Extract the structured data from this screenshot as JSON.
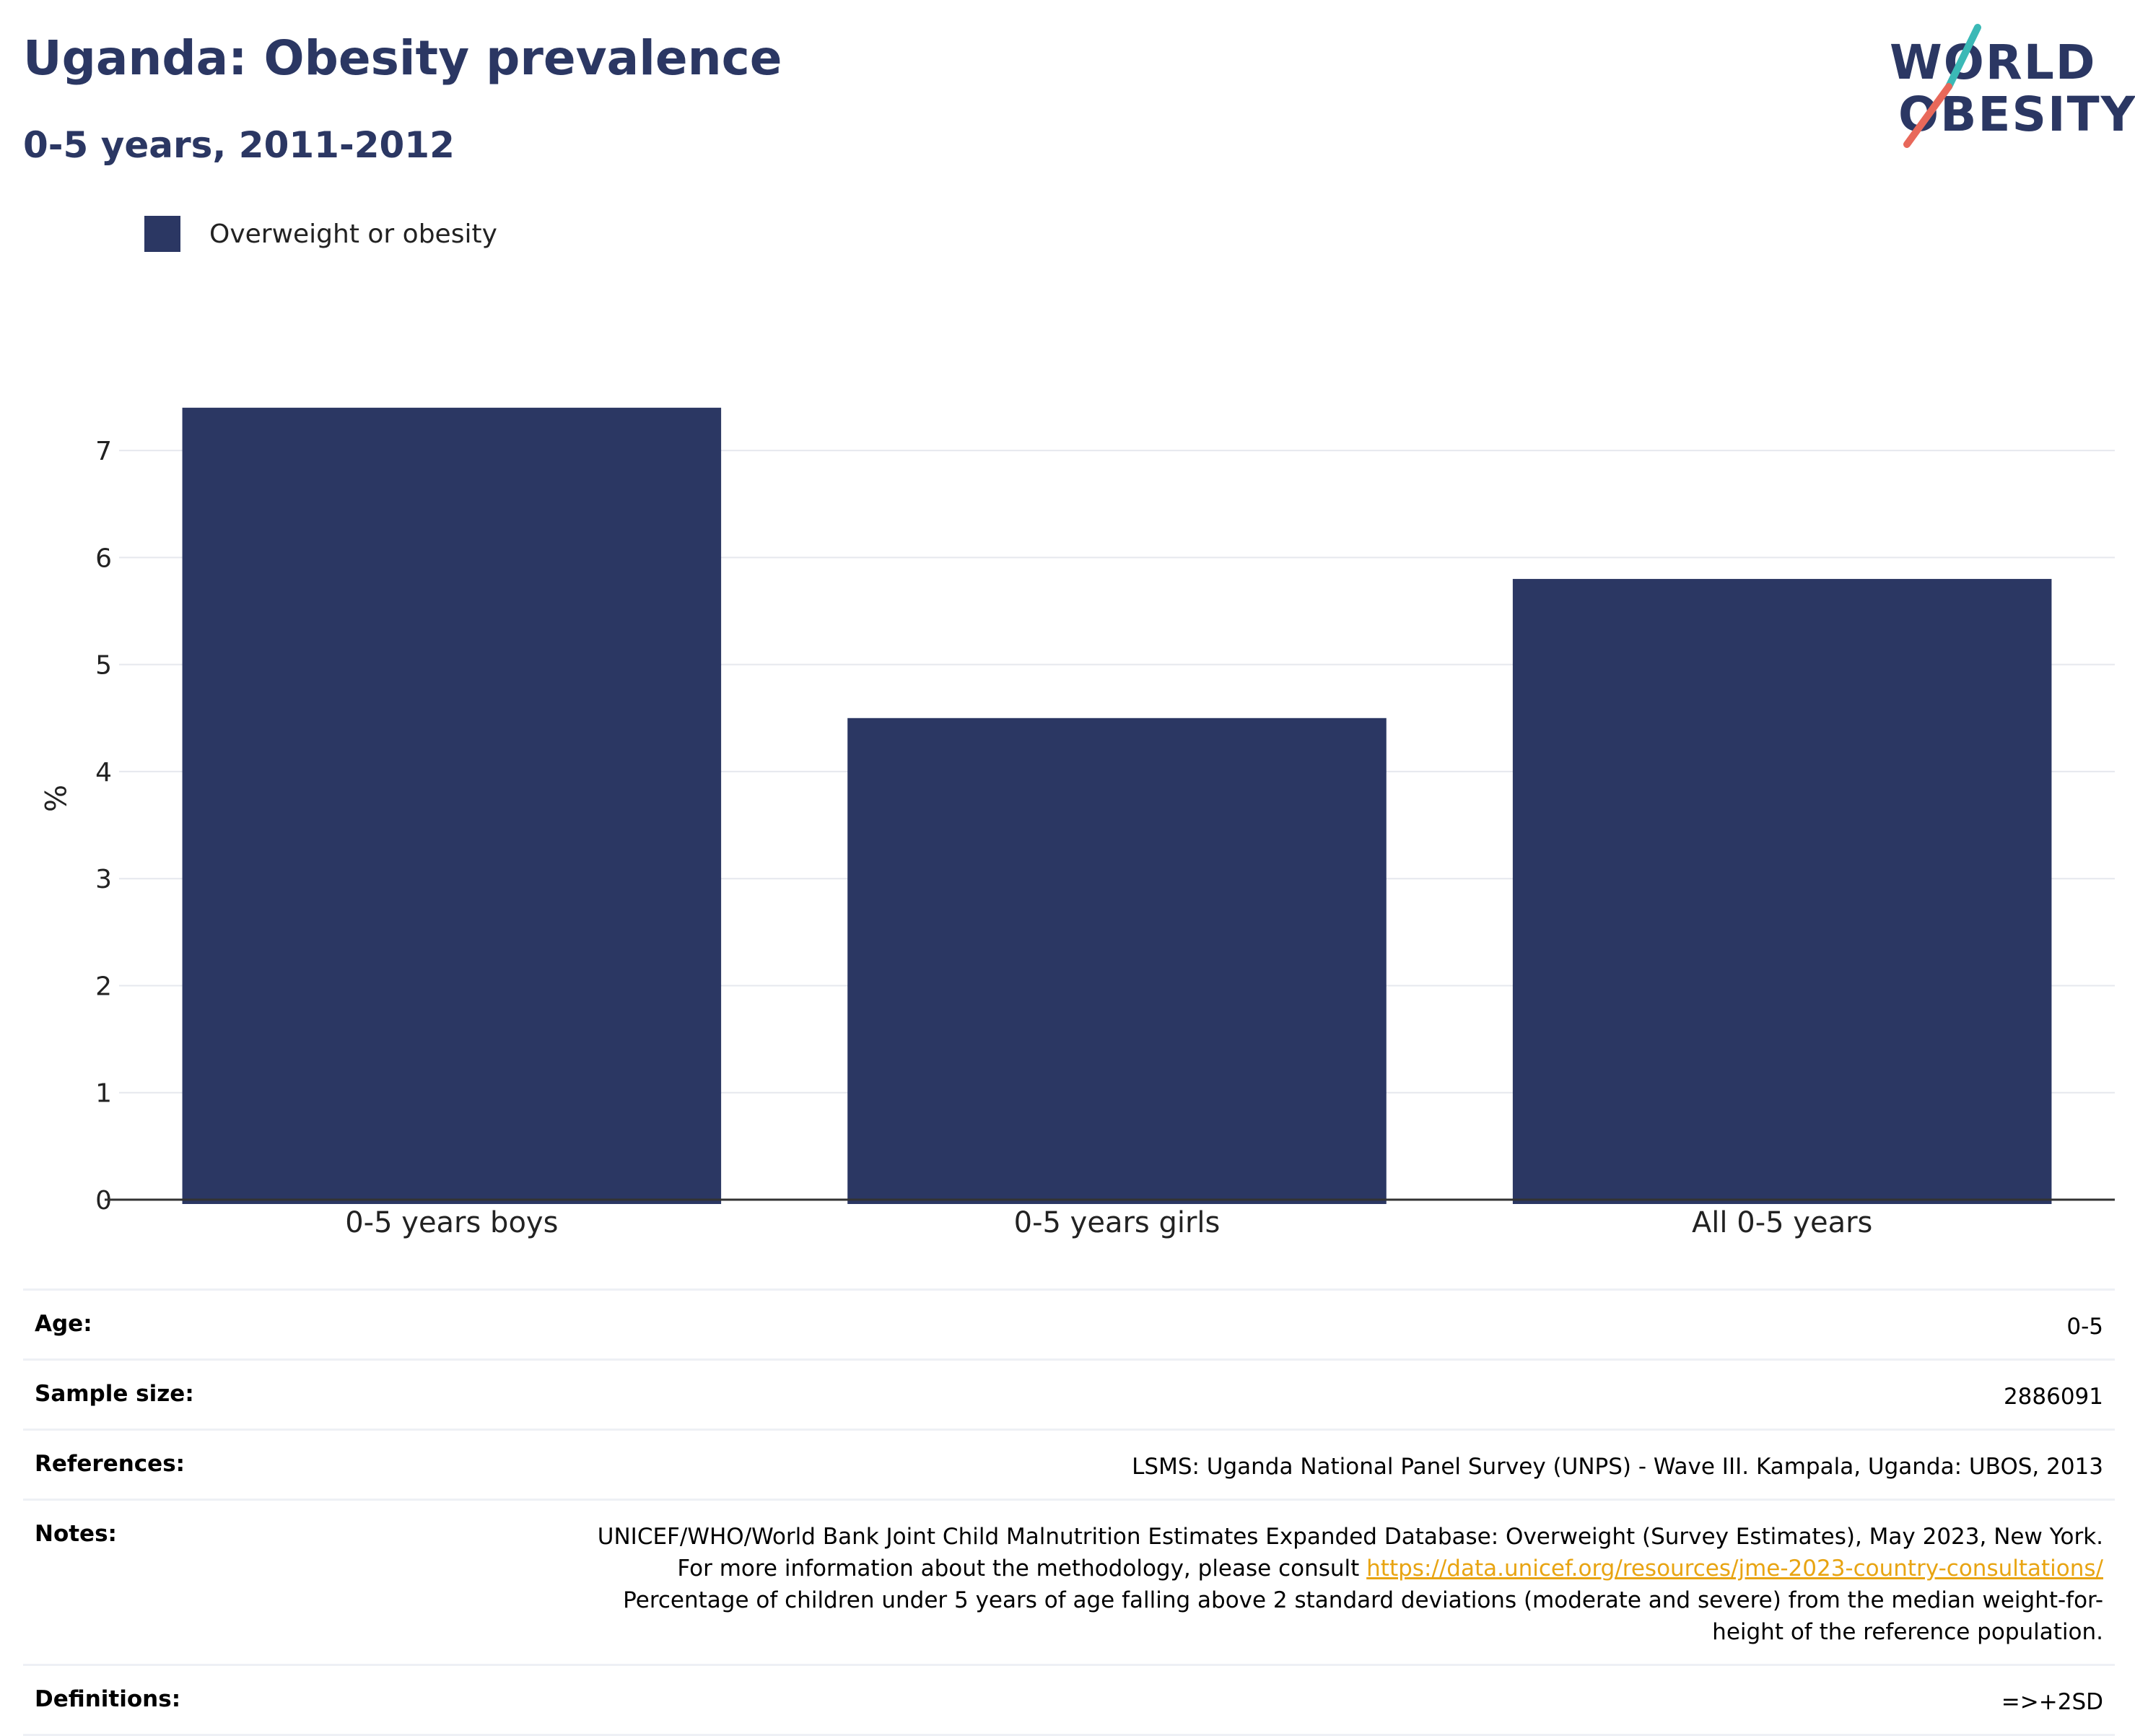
{
  "header": {
    "title": "Uganda: Obesity prevalence",
    "subtitle": "0-5 years, 2011-2012"
  },
  "logo": {
    "line1": "WORLD",
    "line2": "OBESITY",
    "accent": "#3bb9b6",
    "accent2": "#e8685a",
    "color": "#2b3763"
  },
  "legend": {
    "label": "Overweight or obesity",
    "color": "#2b3763"
  },
  "chart_data": {
    "type": "bar",
    "categories": [
      "0-5 years boys",
      "0-5 years girls",
      "All 0-5 years"
    ],
    "series": [
      {
        "name": "Overweight or obesity",
        "values": [
          7.4,
          4.5,
          5.8
        ],
        "color": "#2b3763"
      }
    ],
    "ylabel": "%",
    "ylim": [
      0,
      7.5
    ],
    "yticks": [
      "0",
      "1",
      "2",
      "3",
      "4",
      "5",
      "6",
      "7"
    ],
    "grid": true,
    "legend_position": "top-left"
  },
  "info": {
    "age_label": "Age:",
    "age_value": "0-5",
    "sample_label": "Sample size:",
    "sample_value": "2886091",
    "references_label": "References:",
    "references_value": "LSMS: Uganda National Panel Survey (UNPS) - Wave III. Kampala, Uganda: UBOS, 2013",
    "notes_label": "Notes:",
    "notes_text1": "UNICEF/WHO/World Bank Joint Child Malnutrition Estimates Expanded Database: Overweight (Survey Estimates), May 2023, New York. For more information about the methodology, please consult ",
    "notes_link": "https://data.unicef.org/resources/jme-2023-country-consultations/",
    "notes_text2": "Percentage of children under 5 years of age falling above 2 standard deviations (moderate and severe) from the median weight-for-height of the reference population.",
    "definitions_label": "Definitions:",
    "definitions_value": "=>+2SD"
  }
}
